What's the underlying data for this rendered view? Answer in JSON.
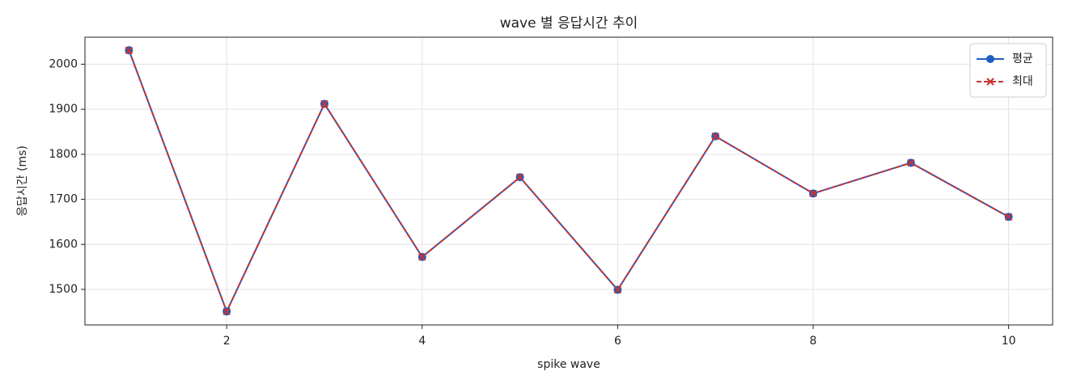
{
  "chart_data": {
    "type": "line",
    "title": "wave 별 응답시간 추이",
    "xlabel": "spike wave",
    "ylabel": "응답시간 (ms)",
    "x": [
      1,
      2,
      3,
      4,
      5,
      6,
      7,
      8,
      9,
      10
    ],
    "series": [
      {
        "name": "평균",
        "color": "#1f5fbf",
        "marker": "o",
        "linestyle": "solid",
        "values": [
          2031,
          1451,
          1912,
          1572,
          1749,
          1499,
          1840,
          1713,
          1781,
          1661
        ]
      },
      {
        "name": "최대",
        "color": "#c83232",
        "marker": "x",
        "linestyle": "dashed",
        "values": [
          2031,
          1451,
          1912,
          1572,
          1749,
          1499,
          1840,
          1713,
          1781,
          1661
        ]
      }
    ],
    "xlim": [
      0.55,
      10.45
    ],
    "ylim": [
      1421,
      2060
    ],
    "xticks": [
      2,
      4,
      6,
      8,
      10
    ],
    "yticks": [
      1500,
      1600,
      1700,
      1800,
      1900,
      2000
    ],
    "grid": true,
    "legend": "upper right"
  }
}
